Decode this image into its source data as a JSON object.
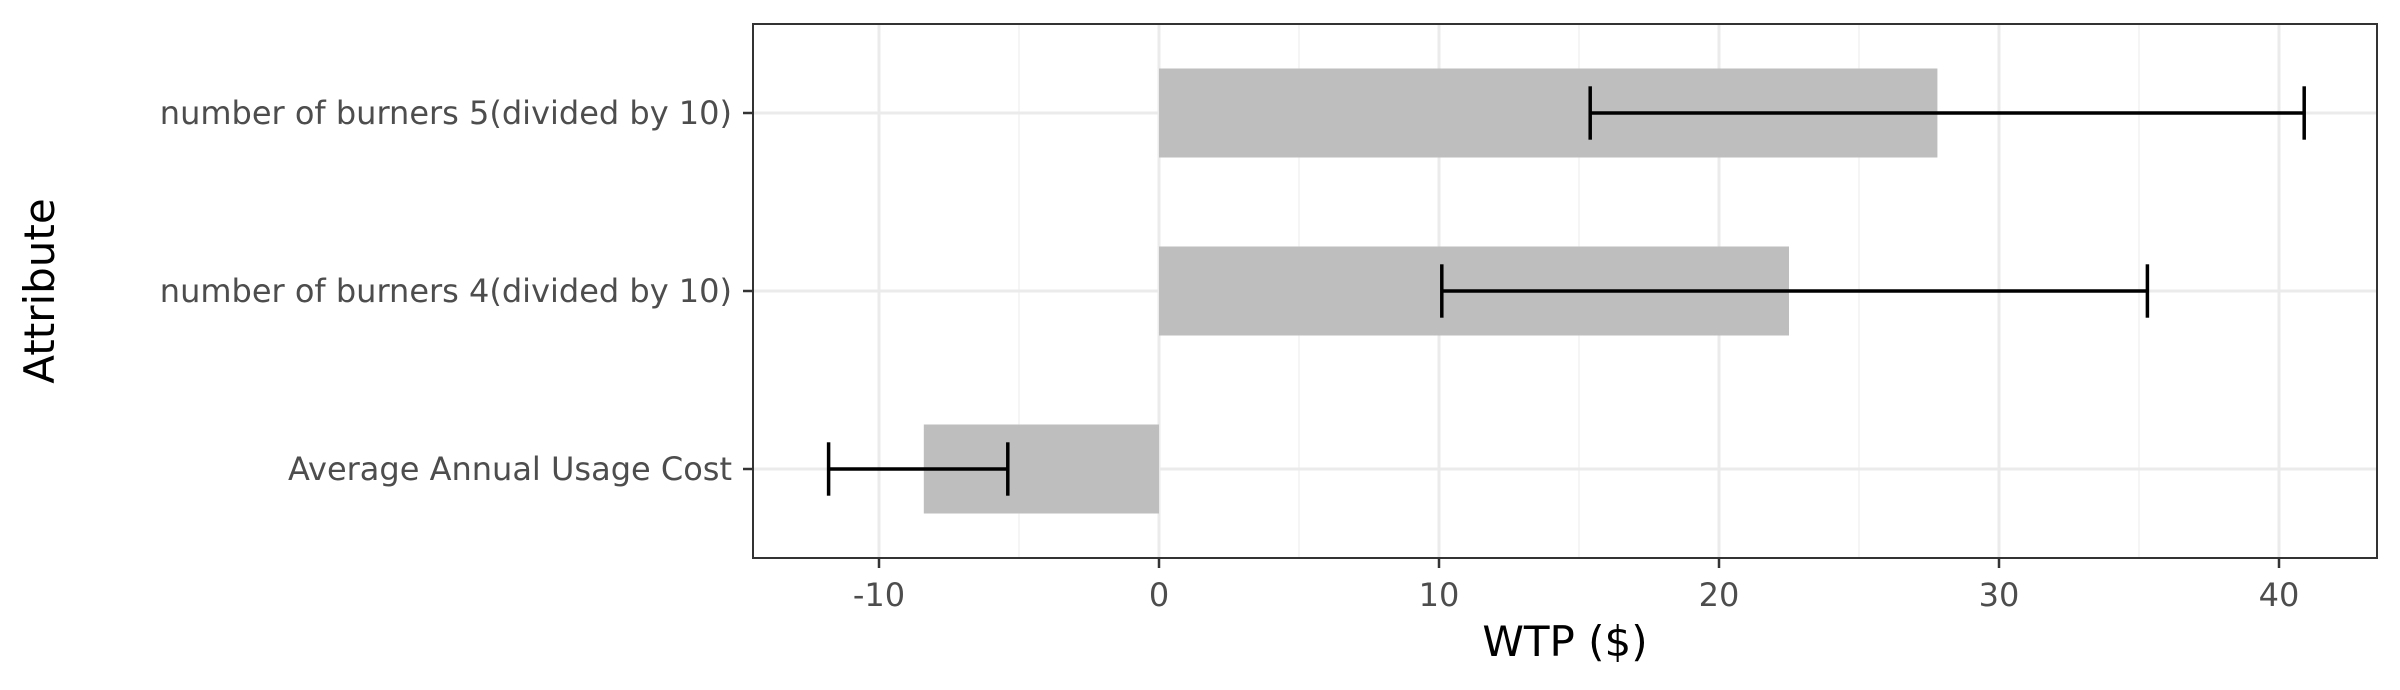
{
  "chart_data": {
    "type": "bar",
    "orientation": "horizontal",
    "xlabel": "WTP ($)",
    "ylabel": "Attribute",
    "xlim": [
      -14.5,
      43.5
    ],
    "x_ticks": [
      -10,
      0,
      10,
      20,
      30,
      40
    ],
    "x_tick_labels": [
      "-10",
      "0",
      "10",
      "20",
      "30",
      "40"
    ],
    "categories": [
      "number of burners 5(divided by 10)",
      "number of burners 4(divided by 10)",
      "Average Annual Usage Cost"
    ],
    "values": [
      27.8,
      22.5,
      -8.4
    ],
    "error_low": [
      15.4,
      10.1,
      -11.8
    ],
    "error_high": [
      40.9,
      35.3,
      -5.4
    ],
    "grid": true,
    "colors": {
      "bar": "#bebebe",
      "error_bar": "#000000",
      "grid_major": "#ebebeb",
      "grid_minor": "#f2f2f2",
      "panel_border": "#333333",
      "tick_text": "#4d4d4d"
    }
  }
}
